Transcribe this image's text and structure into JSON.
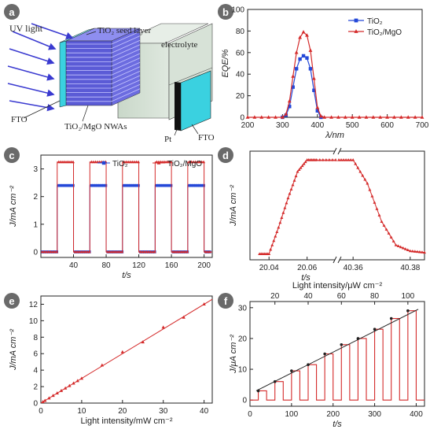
{
  "colors": {
    "red": "#d42a2a",
    "blue": "#2448d8",
    "dark": "#3a3a3a",
    "badge": "#6a6a6a",
    "cyan": "#3ad1e0",
    "nw": "#5b5bd6"
  },
  "panels": {
    "a": "a",
    "b": "b",
    "c": "c",
    "d": "d",
    "e": "e",
    "f": "f"
  },
  "schematic": {
    "uv_light": "UV light",
    "seed_layer": "TiO₂ seed layer",
    "electrolyte": "electrolyte",
    "fto_left": "FTO",
    "nwas": "TiO₂/MgO NWAs",
    "pt": "Pt",
    "fto_right": "FTO"
  },
  "chart_data": [
    {
      "panel": "b",
      "type": "line",
      "xlabel": "λ/nm",
      "ylabel": "EQE/%",
      "xlim": [
        200,
        700
      ],
      "ylim": [
        0,
        100
      ],
      "xticks": [
        200,
        300,
        400,
        500,
        600,
        700
      ],
      "yticks": [
        0,
        20,
        40,
        60,
        80,
        100
      ],
      "legend_position": "top-right",
      "series": [
        {
          "name": "TiO₂",
          "color": "blue",
          "marker": "square",
          "x": [
            300,
            310,
            320,
            330,
            340,
            350,
            360,
            370,
            380,
            390,
            400,
            410
          ],
          "y": [
            0,
            2,
            10,
            28,
            45,
            54,
            57,
            55,
            45,
            25,
            6,
            0
          ]
        },
        {
          "name": "TiO₂/MgO",
          "color": "red",
          "marker": "triangle",
          "x": [
            200,
            220,
            240,
            260,
            280,
            300,
            310,
            320,
            330,
            340,
            350,
            360,
            370,
            380,
            390,
            400,
            410,
            420,
            440,
            460,
            480,
            500,
            520,
            540,
            560,
            580,
            600,
            620,
            640,
            660,
            680,
            700
          ],
          "y": [
            0,
            0,
            0,
            0,
            0,
            0,
            3,
            15,
            38,
            60,
            74,
            79,
            76,
            62,
            36,
            9,
            1,
            0,
            0,
            0,
            0,
            0,
            0,
            0,
            0,
            0,
            0,
            0,
            0,
            0,
            0,
            0
          ]
        }
      ]
    },
    {
      "panel": "c",
      "type": "line",
      "xlabel": "t/s",
      "ylabel": "J/mA cm⁻²",
      "xlim": [
        0,
        210
      ],
      "ylim": [
        -0.2,
        3.5
      ],
      "xticks": [
        40,
        80,
        120,
        160,
        200
      ],
      "yticks": [
        0,
        1,
        2,
        3
      ],
      "legend_position": "top",
      "on_intervals": [
        [
          20,
          40
        ],
        [
          60,
          80
        ],
        [
          100,
          120
        ],
        [
          140,
          160
        ],
        [
          180,
          200
        ]
      ],
      "series": [
        {
          "name": "TiO₂",
          "color": "blue",
          "marker": "square",
          "on_value": 2.4,
          "off_value": 0
        },
        {
          "name": "TiO₂/MgO",
          "color": "red",
          "marker": "triangle",
          "on_value": 3.25,
          "off_value": 0
        }
      ]
    },
    {
      "panel": "d",
      "type": "line",
      "xlabel": "t/s",
      "ylabel": "J/mA cm⁻²",
      "broken_x_axis": true,
      "xticks": [
        20.04,
        20.06,
        40.36,
        40.38
      ],
      "segments": [
        {
          "xlim": [
            20.03,
            20.075
          ],
          "x": [
            20.035,
            20.04,
            20.045,
            20.05,
            20.055,
            20.06,
            20.065,
            20.075
          ],
          "y": [
            0,
            0,
            0.9,
            1.9,
            2.8,
            3.2,
            3.2,
            3.2
          ]
        },
        {
          "xlim": [
            40.355,
            40.385
          ],
          "x": [
            40.355,
            40.36,
            40.365,
            40.37,
            40.375,
            40.38,
            40.385
          ],
          "y": [
            3.2,
            3.2,
            2.4,
            1.1,
            0.3,
            0.1,
            0.05
          ]
        }
      ],
      "ylim": [
        -0.2,
        3.5
      ],
      "series": [
        {
          "name": "TiO₂/MgO",
          "color": "red",
          "marker": "triangle"
        }
      ]
    },
    {
      "panel": "e",
      "type": "scatter",
      "xlabel": "Light intensity/mW cm⁻²",
      "ylabel": "J/mA cm⁻²",
      "xlim": [
        0,
        42
      ],
      "ylim": [
        0,
        13
      ],
      "xticks": [
        0,
        10,
        20,
        30,
        40
      ],
      "yticks": [
        0,
        2,
        4,
        6,
        8,
        10,
        12
      ],
      "fit_line": {
        "x": [
          0,
          42
        ],
        "y": [
          0,
          12.6
        ]
      },
      "series": [
        {
          "name": "",
          "color": "red",
          "x": [
            0.5,
            1,
            2,
            3,
            4,
            5,
            6,
            7,
            8,
            9,
            10,
            15,
            20,
            25,
            30,
            35,
            40
          ],
          "y": [
            0.15,
            0.3,
            0.6,
            0.9,
            1.2,
            1.5,
            1.8,
            2.1,
            2.4,
            2.7,
            3.0,
            4.6,
            6.2,
            7.4,
            9.2,
            10.4,
            12.0
          ]
        }
      ]
    },
    {
      "panel": "f",
      "type": "line",
      "xlabel": "t/s",
      "ylabel": "J/μA cm⁻²",
      "top_xlabel": "Light intensity/μW cm⁻²",
      "xlim": [
        0,
        420
      ],
      "ylim": [
        -2,
        32
      ],
      "xticks": [
        0,
        100,
        200,
        300,
        400
      ],
      "top_xticks": [
        20,
        40,
        60,
        80,
        100
      ],
      "yticks": [
        0,
        10,
        20,
        30
      ],
      "pulse_period": 40,
      "pulses": [
        {
          "t_on": 20,
          "t_off": 40,
          "value": 3
        },
        {
          "t_on": 60,
          "t_off": 80,
          "value": 6
        },
        {
          "t_on": 100,
          "t_off": 120,
          "value": 9.5
        },
        {
          "t_on": 140,
          "t_off": 160,
          "value": 11.5
        },
        {
          "t_on": 180,
          "t_off": 200,
          "value": 15
        },
        {
          "t_on": 220,
          "t_off": 240,
          "value": 18
        },
        {
          "t_on": 260,
          "t_off": 280,
          "value": 20
        },
        {
          "t_on": 300,
          "t_off": 320,
          "value": 23
        },
        {
          "t_on": 340,
          "t_off": 360,
          "value": 26.5
        },
        {
          "t_on": 380,
          "t_off": 400,
          "value": 29
        }
      ],
      "trend_line": {
        "x": [
          15,
          405
        ],
        "y": [
          3,
          29.5
        ]
      },
      "series": [
        {
          "name": "",
          "color": "red"
        }
      ]
    }
  ]
}
